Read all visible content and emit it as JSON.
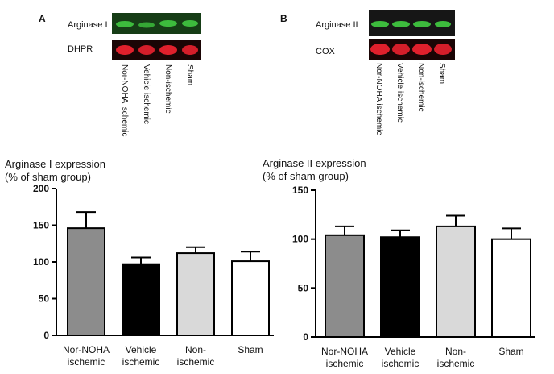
{
  "panels": [
    {
      "letter": "A",
      "blot_labels": [
        "Arginase I",
        "DHPR"
      ],
      "lane_labels": [
        "Nor-NOHA ischemic",
        "Vehicle ischemic",
        "Non-ischemic",
        "Sham"
      ]
    },
    {
      "letter": "B",
      "blot_labels": [
        "Arginase II",
        "COX"
      ],
      "lane_labels": [
        "Nor-NOHA ischemic",
        "Vehicle ischemic",
        "Non-ischemic",
        "Sham"
      ]
    }
  ],
  "colors": {
    "band_green": "#3dbb3d",
    "band_red": "#e0202c",
    "blot_dark": "#161616",
    "bar_colors": [
      "#8c8c8c",
      "#000000",
      "#d9d9d9",
      "#ffffff"
    ]
  },
  "chart_data": [
    {
      "type": "bar",
      "ylabel_lines": [
        "Arginase I expression",
        "(% of sham group)"
      ],
      "categories": [
        [
          "Nor-NOHA",
          "ischemic"
        ],
        [
          "Vehicle",
          "ischemic"
        ],
        [
          "Non-",
          "ischemic"
        ],
        [
          "Sham"
        ]
      ],
      "values": [
        146,
        97,
        112,
        101
      ],
      "errors": [
        22,
        9,
        8,
        13
      ],
      "ylim": [
        0,
        200
      ],
      "yticks": [
        0,
        50,
        100,
        150,
        200
      ],
      "grid": false,
      "error_bars": true
    },
    {
      "type": "bar",
      "ylabel_lines": [
        "Arginase II expression",
        "(% of sham group)"
      ],
      "categories": [
        [
          "Nor-NOHA",
          "ischemic"
        ],
        [
          "Vehicle",
          "ischemic"
        ],
        [
          "Non-",
          "ischemic"
        ],
        [
          "Sham"
        ]
      ],
      "values": [
        104,
        102,
        113,
        100
      ],
      "errors": [
        9,
        7,
        11,
        11
      ],
      "ylim": [
        0,
        150
      ],
      "yticks": [
        0,
        50,
        100,
        150
      ],
      "grid": false,
      "error_bars": true
    }
  ]
}
